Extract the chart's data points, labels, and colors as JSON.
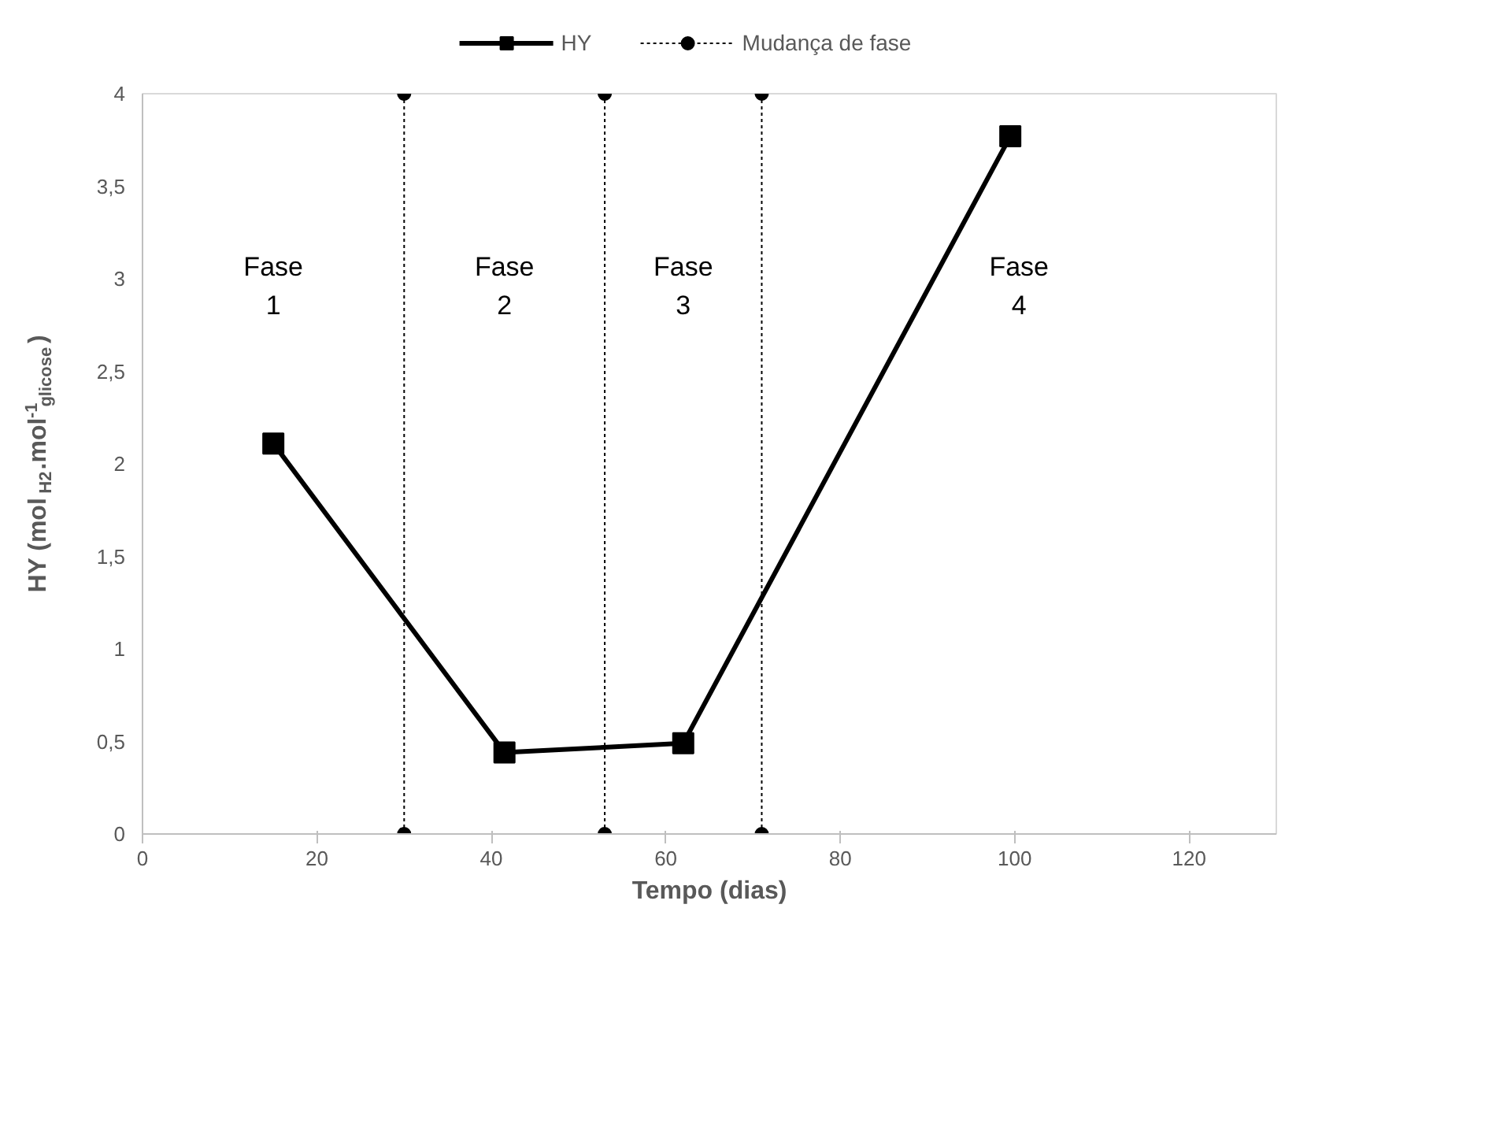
{
  "chart_data": {
    "type": "line",
    "xlabel": "Tempo (dias)",
    "ylabel": "HY (mol$_{H2}$.mol$^{-1}$$_{glicose}$)",
    "xlim": [
      0,
      130
    ],
    "xticks": [
      0,
      20,
      40,
      60,
      80,
      100,
      120
    ],
    "ylim": [
      0,
      4
    ],
    "yticks": [
      0,
      {
        "value": 0.5,
        "label": "0,5"
      },
      1,
      {
        "value": 1.5,
        "label": "1,5"
      },
      2,
      {
        "value": 2.5,
        "label": "2,5"
      },
      3,
      {
        "value": 3.5,
        "label": "3,5"
      },
      4
    ],
    "grid": false,
    "legend": "top",
    "series": [
      {
        "name": "HY",
        "color": "#000000",
        "marker": "square",
        "line_style": "solid",
        "x": [
          15,
          41.5,
          62,
          99.5
        ],
        "values": [
          2.11,
          0.44,
          0.49,
          3.77
        ]
      },
      {
        "name": "Mudança de fase",
        "color": "#000000",
        "marker": "circle",
        "line_style": "dotted",
        "x": [
          30,
          30,
          null,
          53,
          53,
          null,
          71,
          71
        ],
        "values": [
          0,
          4,
          null,
          0,
          4,
          null,
          0,
          4
        ]
      }
    ],
    "annotations": [
      "Fase\n1",
      "Fase\n2",
      "Fase\n3",
      "Fase\n4"
    ]
  }
}
